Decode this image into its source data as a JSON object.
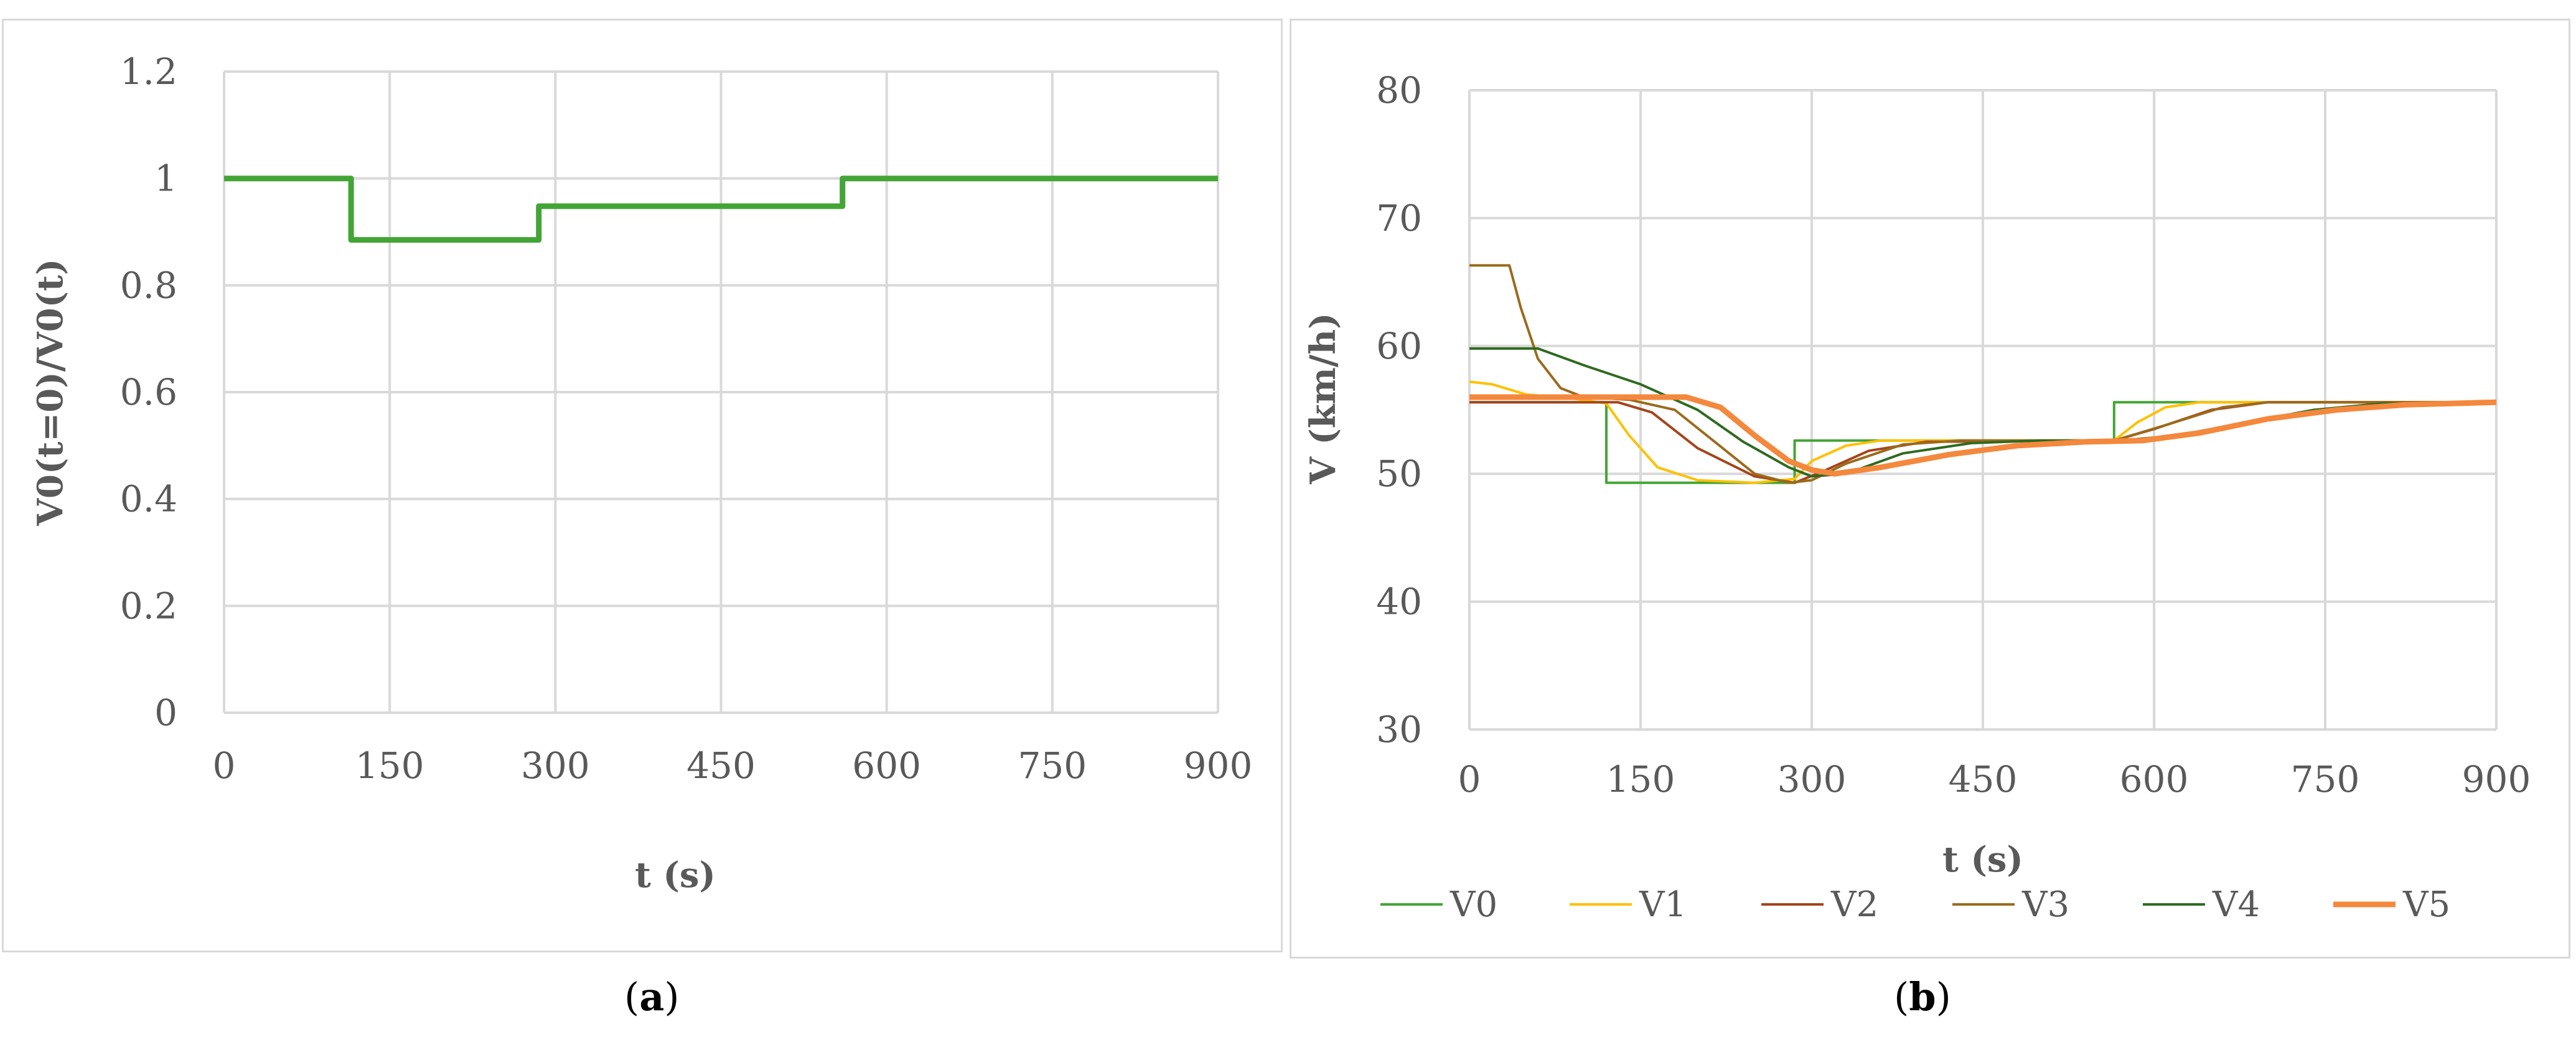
{
  "chart_data": [
    {
      "panel": "a",
      "type": "line",
      "caption_letter": "a",
      "xlabel": "t (s)",
      "ylabel": "V0(t=0)/V0(t)",
      "xlim": [
        0,
        900
      ],
      "ylim": [
        0,
        1.2
      ],
      "xticks": [
        0,
        150,
        300,
        450,
        600,
        750,
        900
      ],
      "yticks": [
        0,
        0.2,
        0.4,
        0.6,
        0.8,
        1,
        1.2
      ],
      "grid": true,
      "legend": "none",
      "series": [
        {
          "color": "#43a535",
          "values": [
            [
              0,
              1
            ],
            [
              115,
              1
            ],
            [
              115,
              0.885
            ],
            [
              285,
              0.885
            ],
            [
              285,
              0.948
            ],
            [
              560,
              0.948
            ],
            [
              560,
              1
            ],
            [
              900,
              1
            ]
          ]
        }
      ]
    },
    {
      "panel": "b",
      "type": "line",
      "caption_letter": "b",
      "xlabel": "t (s)",
      "ylabel": "V (km/h)",
      "xlim": [
        0,
        900
      ],
      "ylim": [
        30,
        80
      ],
      "xticks": [
        0,
        150,
        300,
        450,
        600,
        750,
        900
      ],
      "yticks": [
        30,
        40,
        50,
        60,
        70,
        80
      ],
      "grid": true,
      "legend": "bottom",
      "series": [
        {
          "name": "V0",
          "color": "#43a535",
          "width": 3,
          "values": [
            [
              0,
              55.6
            ],
            [
              120,
              55.6
            ],
            [
              120,
              49.3
            ],
            [
              285,
              49.3
            ],
            [
              285,
              52.6
            ],
            [
              565,
              52.6
            ],
            [
              565,
              55.6
            ],
            [
              900,
              55.6
            ]
          ]
        },
        {
          "name": "V1",
          "color": "#ffc000",
          "width": 3,
          "values": [
            [
              0,
              57.2
            ],
            [
              20,
              57
            ],
            [
              50,
              56.2
            ],
            [
              90,
              55.9
            ],
            [
              120,
              55.5
            ],
            [
              140,
              53
            ],
            [
              165,
              50.5
            ],
            [
              200,
              49.5
            ],
            [
              250,
              49.3
            ],
            [
              285,
              49.6
            ],
            [
              300,
              51
            ],
            [
              330,
              52.2
            ],
            [
              360,
              52.6
            ],
            [
              565,
              52.6
            ],
            [
              585,
              54
            ],
            [
              610,
              55.2
            ],
            [
              640,
              55.6
            ],
            [
              900,
              55.6
            ]
          ]
        },
        {
          "name": "V2",
          "color": "#a5441a",
          "width": 3,
          "values": [
            [
              0,
              55.6
            ],
            [
              130,
              55.6
            ],
            [
              160,
              54.8
            ],
            [
              200,
              52
            ],
            [
              250,
              49.8
            ],
            [
              285,
              49.3
            ],
            [
              310,
              50.2
            ],
            [
              350,
              51.8
            ],
            [
              400,
              52.5
            ],
            [
              565,
              52.6
            ],
            [
              600,
              53.5
            ],
            [
              650,
              55
            ],
            [
              700,
              55.6
            ],
            [
              900,
              55.6
            ]
          ]
        },
        {
          "name": "V3",
          "color": "#9c6a1c",
          "width": 3,
          "values": [
            [
              0,
              66.3
            ],
            [
              35,
              66.3
            ],
            [
              45,
              63
            ],
            [
              60,
              59
            ],
            [
              80,
              56.7
            ],
            [
              100,
              56
            ],
            [
              140,
              55.8
            ],
            [
              180,
              55
            ],
            [
              215,
              52.5
            ],
            [
              250,
              50
            ],
            [
              280,
              49.3
            ],
            [
              300,
              49.5
            ],
            [
              330,
              50.8
            ],
            [
              380,
              52.3
            ],
            [
              430,
              52.6
            ],
            [
              565,
              52.6
            ],
            [
              610,
              53.8
            ],
            [
              660,
              55.2
            ],
            [
              700,
              55.6
            ],
            [
              900,
              55.6
            ]
          ]
        },
        {
          "name": "V4",
          "color": "#2e6a1f",
          "width": 3,
          "values": [
            [
              0,
              59.8
            ],
            [
              60,
              59.8
            ],
            [
              100,
              58.5
            ],
            [
              150,
              57
            ],
            [
              200,
              55
            ],
            [
              240,
              52.5
            ],
            [
              280,
              50.5
            ],
            [
              300,
              49.8
            ],
            [
              330,
              50
            ],
            [
              380,
              51.6
            ],
            [
              440,
              52.4
            ],
            [
              500,
              52.6
            ],
            [
              570,
              52.6
            ],
            [
              620,
              53
            ],
            [
              680,
              54
            ],
            [
              740,
              55
            ],
            [
              800,
              55.5
            ],
            [
              900,
              55.6
            ]
          ]
        },
        {
          "name": "V5",
          "color": "#f4883c",
          "width": 7,
          "values": [
            [
              0,
              56
            ],
            [
              190,
              56
            ],
            [
              220,
              55.2
            ],
            [
              250,
              53
            ],
            [
              280,
              51
            ],
            [
              300,
              50.3
            ],
            [
              320,
              50
            ],
            [
              360,
              50.5
            ],
            [
              420,
              51.5
            ],
            [
              480,
              52.2
            ],
            [
              540,
              52.5
            ],
            [
              590,
              52.6
            ],
            [
              640,
              53.2
            ],
            [
              700,
              54.3
            ],
            [
              760,
              55
            ],
            [
              820,
              55.4
            ],
            [
              900,
              55.6
            ]
          ]
        }
      ]
    }
  ]
}
